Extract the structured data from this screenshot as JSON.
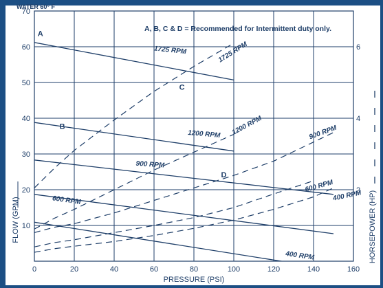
{
  "chart_data": {
    "type": "line",
    "title": "WATER 60° F",
    "note": "A, B, C & D = Recommended for Intermittent duty only.",
    "xlabel": "PRESSURE (PSI)",
    "ylabel": "FLOW (GPM)",
    "y2label": "HORSEPOWER (HP)",
    "xlim": [
      0,
      160
    ],
    "ylim": [
      0,
      70
    ],
    "y2lim": [
      0,
      7
    ],
    "x_ticks": [
      0,
      20,
      40,
      60,
      80,
      100,
      120,
      140,
      160
    ],
    "y_ticks": [
      10,
      20,
      30,
      40,
      50,
      60,
      70
    ],
    "y2_ticks": [
      2,
      4,
      6
    ],
    "grid": true,
    "colors": {
      "frame": "#1c4f84",
      "ink": "#1e3e68",
      "grid": "#1e3e68"
    },
    "flow_series": [
      {
        "name": "1725 RPM",
        "x": [
          0,
          100
        ],
        "y": [
          61.2,
          50.7
        ],
        "label": "1725 RPM"
      },
      {
        "name": "1200 RPM",
        "x": [
          0,
          100
        ],
        "y": [
          38.8,
          30.8
        ],
        "label": "1200 RPM"
      },
      {
        "name": "900 RPM",
        "x": [
          0,
          150
        ],
        "y": [
          28.3,
          18.7
        ],
        "label": "900 RPM"
      },
      {
        "name": "600 RPM",
        "x": [
          0,
          150
        ],
        "y": [
          18.7,
          7.7
        ],
        "label": "600 RPM"
      },
      {
        "name": "400 RPM",
        "x": [
          0,
          150
        ],
        "y": [
          10.9,
          -2.3
        ],
        "label": "400 RPM"
      }
    ],
    "hp_series": [
      {
        "name": "1725 RPM",
        "x": [
          0,
          10,
          20,
          40,
          60,
          80,
          100
        ],
        "y": [
          2.05,
          2.6,
          3.1,
          3.95,
          4.75,
          5.45,
          6.1
        ],
        "label": "1725 RPM"
      },
      {
        "name": "1200 RPM",
        "x": [
          0,
          10,
          20,
          40,
          60,
          80,
          100
        ],
        "y": [
          0.9,
          1.2,
          1.45,
          2.0,
          2.55,
          3.05,
          3.55
        ],
        "label": "1200 RPM"
      },
      {
        "name": "900 RPM",
        "x": [
          0,
          10,
          20,
          40,
          60,
          80,
          100,
          120,
          150
        ],
        "y": [
          0.8,
          0.95,
          1.05,
          1.35,
          1.7,
          2.05,
          2.4,
          2.8,
          3.6
        ],
        "label": "900 RPM"
      },
      {
        "name": "600 RPM",
        "x": [
          0,
          10,
          20,
          40,
          60,
          80,
          100,
          120,
          140
        ],
        "y": [
          0.4,
          0.52,
          0.6,
          0.8,
          1.0,
          1.22,
          1.5,
          1.88,
          2.25
        ],
        "label": "600 RPM"
      },
      {
        "name": "400 RPM",
        "x": [
          0,
          10,
          20,
          40,
          60,
          80,
          100,
          120,
          140,
          150
        ],
        "y": [
          0.25,
          0.35,
          0.42,
          0.55,
          0.72,
          0.92,
          1.15,
          1.45,
          1.8,
          2.05
        ],
        "label": "400 RPM"
      }
    ],
    "point_labels": [
      {
        "text": "A",
        "x": 3,
        "y": 63
      },
      {
        "text": "B",
        "x": 14,
        "y": 37
      },
      {
        "text": "C",
        "x": 74,
        "y": 48
      },
      {
        "text": "D",
        "x": 95,
        "y": 23.5
      }
    ],
    "series_labels": [
      {
        "text": "1725 RPM",
        "x": 68,
        "y": 58.5,
        "angle": 6
      },
      {
        "text": "1725 RPM",
        "x": 100,
        "y": 58,
        "angle": -32
      },
      {
        "text": "1200 RPM",
        "x": 85,
        "y": 35,
        "angle": 5
      },
      {
        "text": "1200 RPM",
        "x": 107,
        "y": 37.5,
        "angle": -28
      },
      {
        "text": "900 RPM",
        "x": 58,
        "y": 26.5,
        "angle": 4
      },
      {
        "text": "900 RPM",
        "x": 145,
        "y": 35.5,
        "angle": -20
      },
      {
        "text": "600 RPM",
        "x": 16,
        "y": 16.5,
        "angle": 8
      },
      {
        "text": "600 RPM",
        "x": 143,
        "y": 20.5,
        "angle": -16
      },
      {
        "text": "400 RPM",
        "x": 157,
        "y": 17.8,
        "angle": -12
      },
      {
        "text": "400 RPM",
        "x": 133,
        "y": 1,
        "angle": 8
      }
    ]
  }
}
